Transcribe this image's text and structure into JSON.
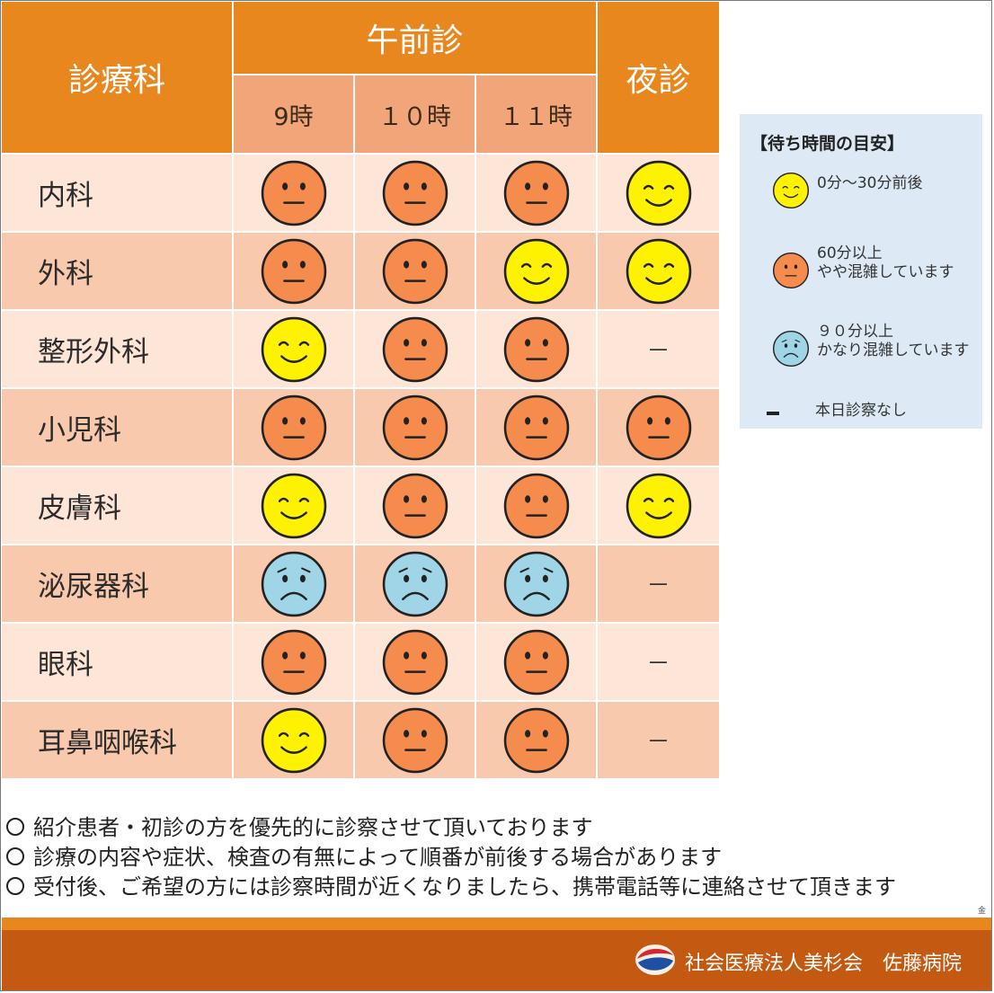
{
  "header": {
    "department": "診療科",
    "morning": "午前診",
    "night": "夜診",
    "hours": [
      "9時",
      "１０時",
      "１１時"
    ]
  },
  "departments": [
    {
      "name": "内科",
      "status": [
        "moderate",
        "moderate",
        "moderate",
        "short"
      ]
    },
    {
      "name": "外科",
      "status": [
        "moderate",
        "moderate",
        "short",
        "short"
      ]
    },
    {
      "name": "整形外科",
      "status": [
        "short",
        "moderate",
        "moderate",
        "none"
      ]
    },
    {
      "name": "小児科",
      "status": [
        "moderate",
        "moderate",
        "moderate",
        "moderate"
      ]
    },
    {
      "name": "皮膚科",
      "status": [
        "short",
        "moderate",
        "moderate",
        "short"
      ]
    },
    {
      "name": "泌尿器科",
      "status": [
        "long",
        "long",
        "long",
        "none"
      ]
    },
    {
      "name": "眼科",
      "status": [
        "moderate",
        "moderate",
        "moderate",
        "none"
      ]
    },
    {
      "name": "耳鼻咽喉科",
      "status": [
        "short",
        "moderate",
        "moderate",
        "none"
      ]
    }
  ],
  "dash_symbol": "－",
  "legend": {
    "title": "【待ち時間の目安】",
    "short": {
      "line1": "0分～30分前後",
      "icon": "happy-face-icon",
      "color": "#fff200"
    },
    "moderate": {
      "line1": "60分以上",
      "line2": "やや混雑しています",
      "icon": "neutral-face-icon",
      "color": "#f58b4c"
    },
    "long": {
      "line1": "９０分以上",
      "line2": "かなり混雑しています",
      "icon": "sad-face-icon",
      "color": "#9fd5e6"
    },
    "none": {
      "line1": "本日診察なし"
    }
  },
  "notes": [
    "紹介患者・初診の方を優先的に診察させて頂いております",
    "診療の内容や症状、検査の有無によって順番が前後する場合があります",
    "受付後、ご希望の方には診察時間が近くなりましたら、携帯電話等に連絡させて頂きます"
  ],
  "page_mark": "金",
  "footer": {
    "organization": "社会医療法人美杉会　佐藤病院"
  }
}
